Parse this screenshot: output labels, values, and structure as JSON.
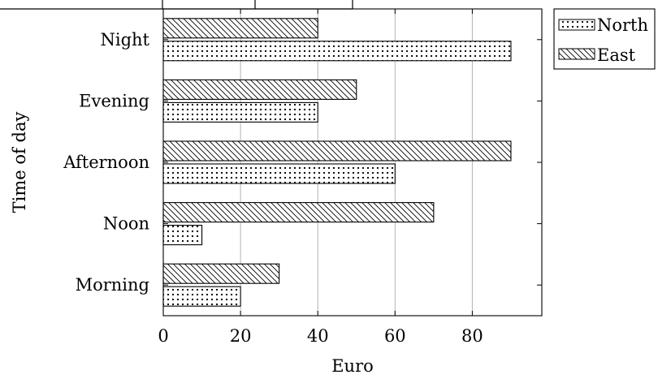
{
  "chart_data": {
    "type": "bar",
    "orientation": "horizontal",
    "categories": [
      "Morning",
      "Noon",
      "Afternoon",
      "Evening",
      "Night"
    ],
    "series": [
      {
        "name": "North",
        "values": [
          20,
          10,
          60,
          40,
          90
        ],
        "pattern": "dots"
      },
      {
        "name": "East",
        "values": [
          30,
          70,
          90,
          50,
          40
        ],
        "pattern": "north-west-lines"
      }
    ],
    "xlabel": "Euro",
    "ylabel": "Time of day",
    "xlim": [
      0,
      98
    ],
    "xticks": [
      0,
      20,
      40,
      60,
      80
    ],
    "grid": "vertical major gridlines",
    "legend_position": "outside top-right",
    "colors": {
      "axis": "#000000",
      "grid": "#b3b3b3",
      "bar_fill": "#ffffff"
    }
  }
}
